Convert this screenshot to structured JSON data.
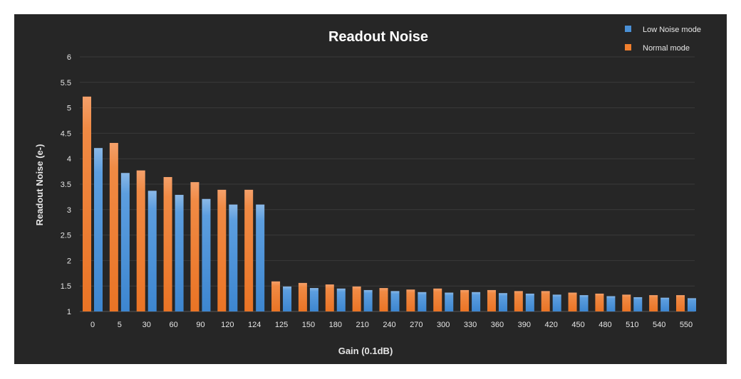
{
  "chart_data": {
    "type": "bar",
    "title": "Readout Noise",
    "xlabel": "Gain (0.1dB)",
    "ylabel": "Readout Noise (e-)",
    "ylim": [
      1,
      6
    ],
    "yticks": [
      "1",
      "1.5",
      "2",
      "2.5",
      "3",
      "3.5",
      "4",
      "4.5",
      "5",
      "5.5",
      "6"
    ],
    "grid": true,
    "legend_position": "top-right",
    "categories": [
      "0",
      "5",
      "30",
      "60",
      "90",
      "120",
      "124",
      "125",
      "150",
      "180",
      "210",
      "240",
      "270",
      "300",
      "330",
      "360",
      "390",
      "420",
      "450",
      "480",
      "510",
      "540",
      "550"
    ],
    "series": [
      {
        "name": "Normal mode",
        "color": "#f07f2e",
        "values": [
          5.22,
          4.31,
          3.77,
          3.64,
          3.54,
          3.39,
          3.39,
          1.59,
          1.56,
          1.53,
          1.49,
          1.46,
          1.43,
          1.45,
          1.42,
          1.42,
          1.4,
          1.4,
          1.37,
          1.35,
          1.33,
          1.32,
          1.32
        ]
      },
      {
        "name": "Low Noise mode",
        "color": "#4a90d6",
        "values": [
          4.21,
          3.72,
          3.37,
          3.29,
          3.21,
          3.1,
          3.1,
          1.49,
          1.46,
          1.45,
          1.42,
          1.4,
          1.38,
          1.37,
          1.38,
          1.36,
          1.35,
          1.33,
          1.32,
          1.3,
          1.28,
          1.27,
          1.26
        ]
      }
    ],
    "legend": [
      "Low Noise mode",
      "Normal mode"
    ]
  }
}
